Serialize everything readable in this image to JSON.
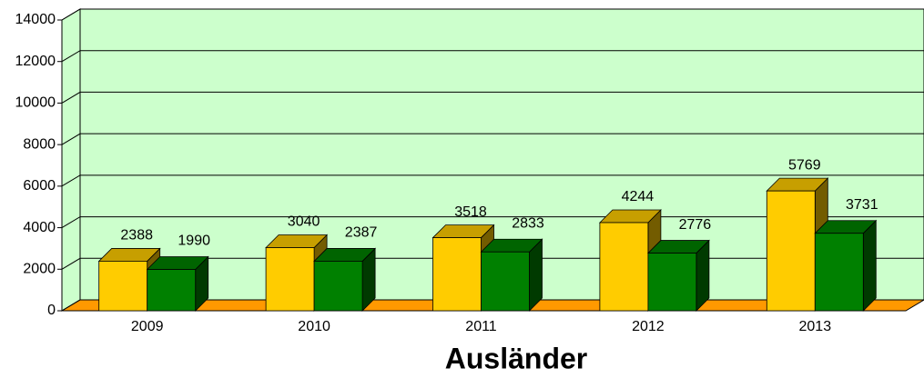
{
  "chart_data": {
    "type": "bar3d",
    "title": "Ausländer",
    "categories": [
      "2009",
      "2010",
      "2011",
      "2012",
      "2013"
    ],
    "series": [
      {
        "color": "#ffcc00",
        "values": [
          2388,
          3040,
          3518,
          4244,
          5769
        ]
      },
      {
        "color": "#008000",
        "values": [
          1990,
          2387,
          2833,
          2776,
          3731
        ]
      }
    ],
    "ylim": [
      0,
      14000
    ],
    "yticks": [
      0,
      2000,
      4000,
      6000,
      8000,
      10000,
      12000,
      14000
    ],
    "grid": true,
    "wall_color": "#ccffcc",
    "floor_color": "#ff9900"
  }
}
